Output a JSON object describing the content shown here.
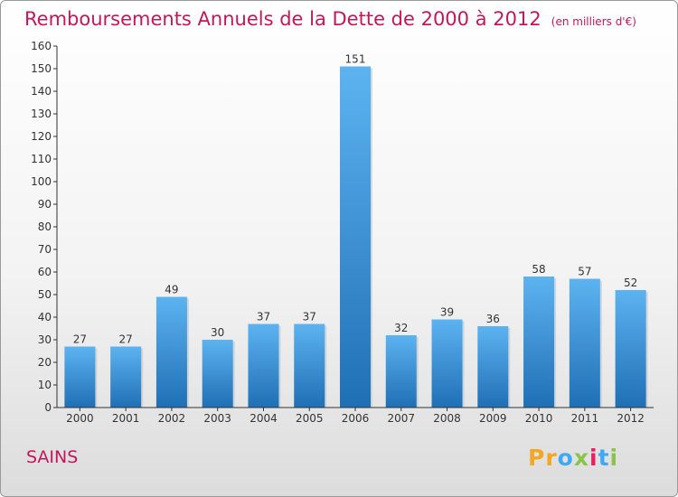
{
  "title": "Remboursements Annuels de la Dette de 2000 à 2012",
  "subtitle": "(en milliers d'€)",
  "commune": "SAINS",
  "brand": {
    "letters": [
      "P",
      "r",
      "o",
      "x",
      "i",
      "t",
      "i"
    ],
    "colors": [
      "#f5a623",
      "#f5a623",
      "#3fa9f5",
      "#8bc34a",
      "#e91e63",
      "#3fa9f5",
      "#8bc34a"
    ]
  },
  "colors": {
    "bar": "#3d9be5",
    "bar_dark": "#1f6fb5",
    "title": "#c2185b",
    "axis": "#333333"
  },
  "chart_data": {
    "type": "bar",
    "categories": [
      "2000",
      "2001",
      "2002",
      "2003",
      "2004",
      "2005",
      "2006",
      "2007",
      "2008",
      "2009",
      "2010",
      "2011",
      "2012"
    ],
    "values": [
      27,
      27,
      49,
      30,
      37,
      37,
      151,
      32,
      39,
      36,
      58,
      57,
      52
    ],
    "ylim": [
      0,
      160
    ],
    "yticks": [
      0,
      10,
      20,
      30,
      40,
      50,
      60,
      70,
      80,
      90,
      100,
      110,
      120,
      130,
      140,
      150,
      160
    ],
    "grid": false,
    "title": "Remboursements Annuels de la Dette de 2000 à 2012",
    "xlabel": "",
    "ylabel": ""
  }
}
